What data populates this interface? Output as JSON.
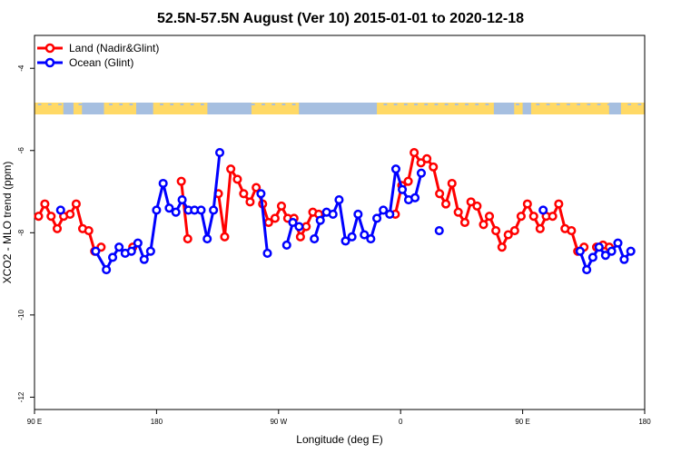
{
  "chart_data": {
    "type": "line",
    "title": "52.5N-57.5N August (Ver 10)   2015-01-01 to 2020-12-18",
    "xlabel": "Longitude (deg E)",
    "ylabel": "XCO2 - MLO trend (ppm)",
    "xlim": [
      90,
      450
    ],
    "ylim": [
      -12.3,
      -3.2
    ],
    "x_ticks": [
      {
        "value": 90,
        "label": "90 E"
      },
      {
        "value": 162,
        "label": "180"
      },
      {
        "value": 234,
        "label": "90 W"
      },
      {
        "value": 306,
        "label": "0"
      },
      {
        "value": 378,
        "label": "90 E"
      },
      {
        "value": 450,
        "label": "180"
      }
    ],
    "y_ticks": [
      {
        "value": -4,
        "label": "-4"
      },
      {
        "value": -6,
        "label": "-6"
      },
      {
        "value": -8,
        "label": "-8"
      },
      {
        "value": -10,
        "label": "-10"
      },
      {
        "value": -12,
        "label": "-12"
      }
    ],
    "grid": false,
    "legend_position": "top-left",
    "series": [
      {
        "name": "Land (Nadir&Glint)",
        "color": "#ff0000",
        "points": [
          [
            92.4,
            -7.6
          ],
          [
            96.1,
            -7.3
          ],
          [
            99.8,
            -7.6
          ],
          [
            103.4,
            -7.9
          ],
          [
            107.2,
            -7.6
          ],
          [
            111,
            -7.55
          ],
          [
            114.6,
            -7.3
          ],
          [
            118.4,
            -7.9
          ],
          [
            122,
            -7.95
          ],
          [
            125.5,
            -8.45
          ],
          [
            129.3,
            -8.35
          ],
          null,
          [
            148,
            -8.35
          ],
          null,
          [
            176.6,
            -6.75
          ],
          [
            180.4,
            -8.15
          ],
          null,
          [
            198.5,
            -7.05
          ],
          [
            202.2,
            -8.1
          ],
          [
            205.8,
            -6.45
          ],
          [
            209.7,
            -6.7
          ],
          [
            213.4,
            -7.05
          ],
          [
            217.2,
            -7.25
          ],
          [
            220.8,
            -6.9
          ],
          [
            224.6,
            -7.3
          ],
          [
            228.1,
            -7.75
          ],
          [
            231.9,
            -7.65
          ],
          [
            235.7,
            -7.35
          ],
          [
            239.4,
            -7.65
          ],
          [
            243.1,
            -7.65
          ],
          [
            246.9,
            -8.1
          ],
          [
            250.3,
            -7.85
          ],
          [
            254.2,
            -7.5
          ],
          [
            257.7,
            -7.55
          ],
          null,
          [
            302.9,
            -7.55
          ],
          [
            306.7,
            -6.85
          ],
          [
            310.5,
            -6.75
          ],
          [
            314,
            -6.05
          ],
          [
            318,
            -6.3
          ],
          [
            321.5,
            -6.2
          ],
          [
            325.3,
            -6.4
          ],
          [
            329,
            -7.05
          ],
          [
            332.7,
            -7.3
          ],
          [
            336.3,
            -6.8
          ],
          [
            340,
            -7.5
          ],
          [
            343.9,
            -7.75
          ],
          [
            347.5,
            -7.25
          ],
          [
            351.1,
            -7.35
          ],
          [
            354.9,
            -7.8
          ],
          [
            358.4,
            -7.6
          ],
          [
            362.2,
            -7.95
          ],
          [
            365.8,
            -8.35
          ],
          [
            369.5,
            -8.05
          ],
          [
            373.3,
            -7.95
          ],
          [
            377.1,
            -7.6
          ],
          [
            380.8,
            -7.3
          ],
          [
            384.5,
            -7.6
          ],
          [
            388.3,
            -7.9
          ],
          [
            391.9,
            -7.6
          ],
          [
            395.7,
            -7.6
          ],
          [
            399.3,
            -7.3
          ],
          [
            403,
            -7.9
          ],
          [
            406.8,
            -7.95
          ],
          [
            410.5,
            -8.45
          ],
          [
            414.2,
            -8.35
          ],
          null,
          [
            421.6,
            -8.35
          ],
          [
            425.4,
            -8.3
          ],
          [
            429.1,
            -8.35
          ]
        ]
      },
      {
        "name": "Ocean (Glint)",
        "color": "#0000ff",
        "points": [
          [
            105.4,
            -7.45
          ],
          null,
          [
            126.1,
            -8.45
          ],
          [
            132.4,
            -8.9
          ],
          [
            136.1,
            -8.6
          ],
          [
            139.9,
            -8.35
          ],
          [
            143.5,
            -8.5
          ],
          [
            147.2,
            -8.45
          ],
          [
            151,
            -8.25
          ],
          [
            154.7,
            -8.65
          ],
          [
            158.5,
            -8.45
          ],
          [
            162,
            -7.45
          ],
          [
            165.9,
            -6.8
          ],
          [
            169.5,
            -7.4
          ],
          [
            173.4,
            -7.5
          ],
          [
            177.1,
            -7.2
          ],
          [
            180.8,
            -7.45
          ],
          [
            184.4,
            -7.45
          ],
          [
            188.3,
            -7.45
          ],
          [
            191.9,
            -8.15
          ],
          [
            195.6,
            -7.45
          ],
          [
            199.3,
            -6.05
          ],
          null,
          [
            223.6,
            -7.05
          ],
          [
            227.4,
            -8.5
          ],
          null,
          [
            238.8,
            -8.3
          ],
          [
            242.4,
            -7.75
          ],
          [
            246.1,
            -7.85
          ],
          null,
          [
            255.1,
            -8.15
          ],
          [
            258.6,
            -7.7
          ],
          [
            262.3,
            -7.5
          ],
          [
            266.1,
            -7.55
          ],
          [
            269.7,
            -7.2
          ],
          [
            273.5,
            -8.2
          ],
          [
            277.3,
            -8.1
          ],
          [
            280.9,
            -7.55
          ],
          [
            284.6,
            -8.05
          ],
          [
            288.4,
            -8.15
          ],
          [
            292,
            -7.65
          ],
          [
            295.8,
            -7.45
          ],
          [
            299.6,
            -7.55
          ],
          [
            303.2,
            -6.45
          ],
          [
            307,
            -6.95
          ],
          [
            310.7,
            -7.2
          ],
          [
            314.5,
            -7.15
          ],
          [
            318.2,
            -6.55
          ],
          null,
          [
            328.8,
            -7.95
          ],
          null,
          [
            390.1,
            -7.45
          ],
          null,
          [
            411.9,
            -8.45
          ],
          [
            415.8,
            -8.9
          ],
          [
            419.4,
            -8.6
          ],
          [
            423.1,
            -8.35
          ],
          [
            426.9,
            -8.55
          ],
          [
            430.5,
            -8.45
          ],
          [
            434.2,
            -8.25
          ],
          [
            437.9,
            -8.65
          ],
          [
            441.8,
            -8.45
          ]
        ]
      }
    ],
    "land_strip_colors": {
      "land": "#ffd966",
      "ocean": "#a6bfe0"
    }
  }
}
